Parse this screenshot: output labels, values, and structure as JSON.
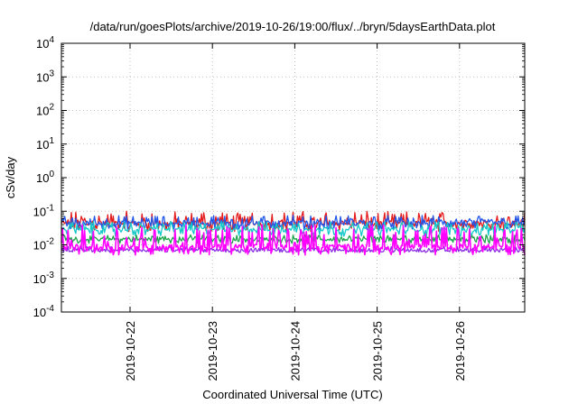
{
  "chart_data": {
    "type": "line",
    "title": "/data/run/goesPlots/archive/2019-10-26/19:00/flux/../bryn/5daysEarthData.plot",
    "xlabel": "Coordinated Universal Time (UTC)",
    "ylabel": "cSv/day",
    "yscale": "log",
    "ylim": [
      0.0001,
      10000
    ],
    "xlim": [
      "2019-10-21 04:00",
      "2019-10-26 19:00"
    ],
    "grid": true,
    "y_ticks": [
      {
        "base": "10",
        "exp": "-4"
      },
      {
        "base": "10",
        "exp": "-3"
      },
      {
        "base": "10",
        "exp": "-2"
      },
      {
        "base": "10",
        "exp": "-1"
      },
      {
        "base": "10",
        "exp": "0"
      },
      {
        "base": "10",
        "exp": "1"
      },
      {
        "base": "10",
        "exp": "2"
      },
      {
        "base": "10",
        "exp": "3"
      },
      {
        "base": "10",
        "exp": "4"
      }
    ],
    "x_ticks": [
      "2019-10-22",
      "2019-10-23",
      "2019-10-24",
      "2019-10-25",
      "2019-10-26"
    ],
    "series": [
      {
        "color": "#e41a1c",
        "baseline": 0.045,
        "hi": 0.1,
        "lo": 0.025
      },
      {
        "color": "#1aa34a",
        "baseline": 0.015,
        "hi": 0.02,
        "lo": 0.011
      },
      {
        "color": "#2156e8",
        "baseline": 0.045,
        "hi": 0.075,
        "lo": 0.028
      },
      {
        "color": "#8a2be2",
        "baseline": 0.007,
        "hi": 0.009,
        "lo": 0.006
      },
      {
        "color": "#14c8c8",
        "baseline": 0.03,
        "hi": 0.05,
        "lo": 0.018
      },
      {
        "color": "#ff00ff",
        "baseline": 0.009,
        "hi": 0.04,
        "lo": 0.005
      }
    ]
  }
}
